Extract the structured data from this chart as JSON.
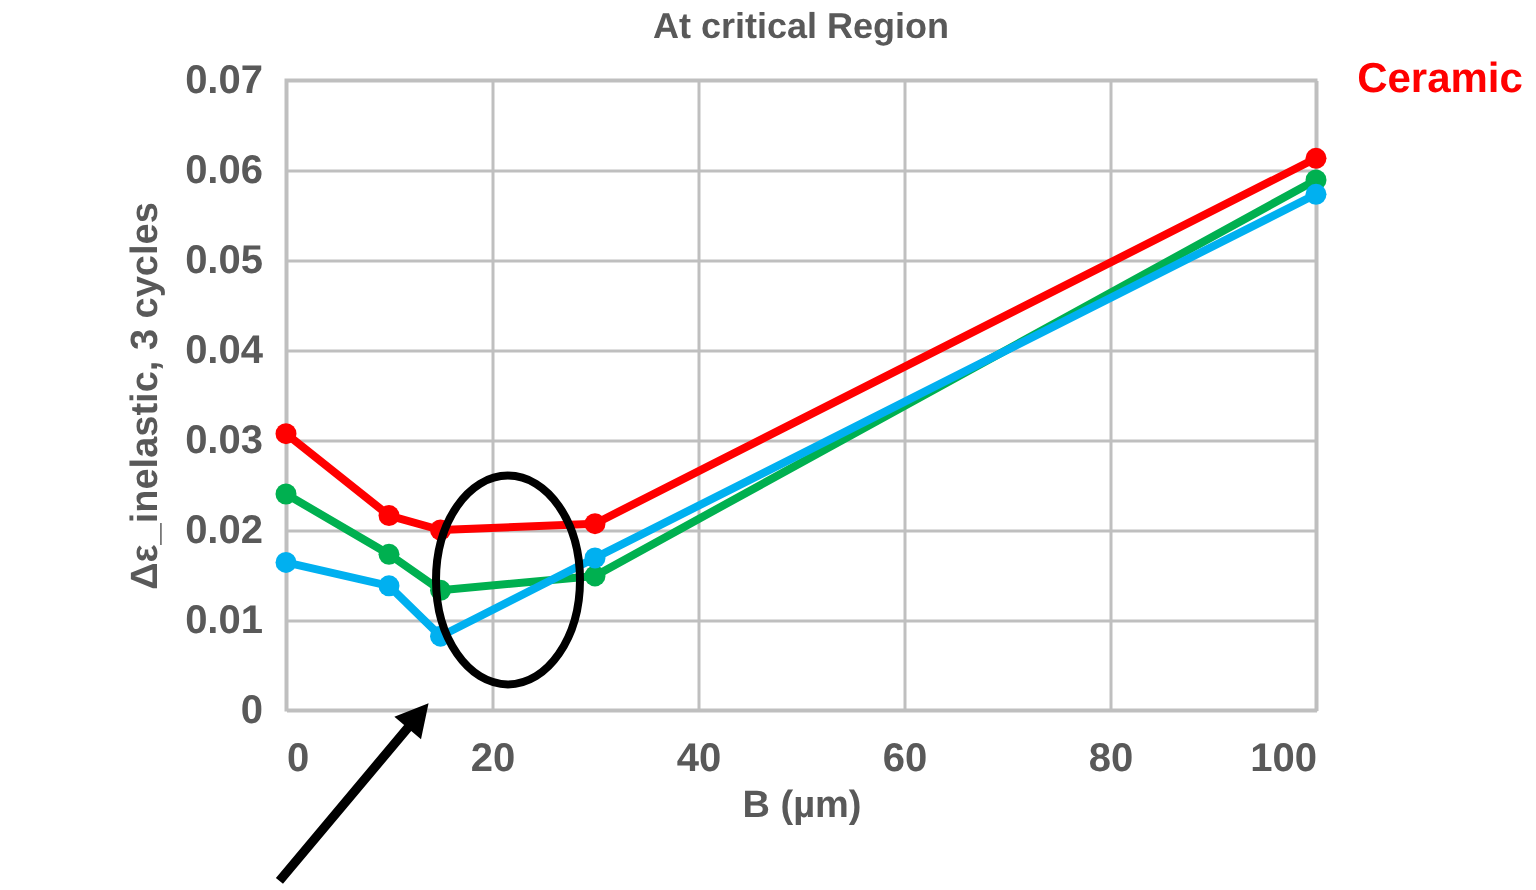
{
  "chart_data": {
    "type": "line",
    "title": "At critical Region",
    "xlabel": "B (µm)",
    "ylabel": "Δε_inelastic, 3 cycles",
    "x": [
      0,
      10,
      15,
      30,
      100
    ],
    "series": [
      {
        "name": "Ceramic",
        "color": "#ff0000",
        "values": [
          0.0307,
          0.0216,
          0.02,
          0.0207,
          0.0613
        ]
      },
      {
        "color": "#00b050",
        "values": [
          0.024,
          0.0173,
          0.0133,
          0.0149,
          0.0589
        ]
      },
      {
        "color": "#00b0f0",
        "values": [
          0.0164,
          0.0138,
          0.0082,
          0.0169,
          0.0573
        ]
      }
    ],
    "xlim": [
      0,
      100
    ],
    "xticks": [
      0,
      20,
      40,
      60,
      80,
      100
    ],
    "ylim": [
      0,
      0.07
    ],
    "yticks": [
      0,
      0.01,
      0.02,
      0.03,
      0.04,
      0.05,
      0.06,
      0.07
    ],
    "grid": true,
    "marker": "circle",
    "line_style": "solid"
  }
}
